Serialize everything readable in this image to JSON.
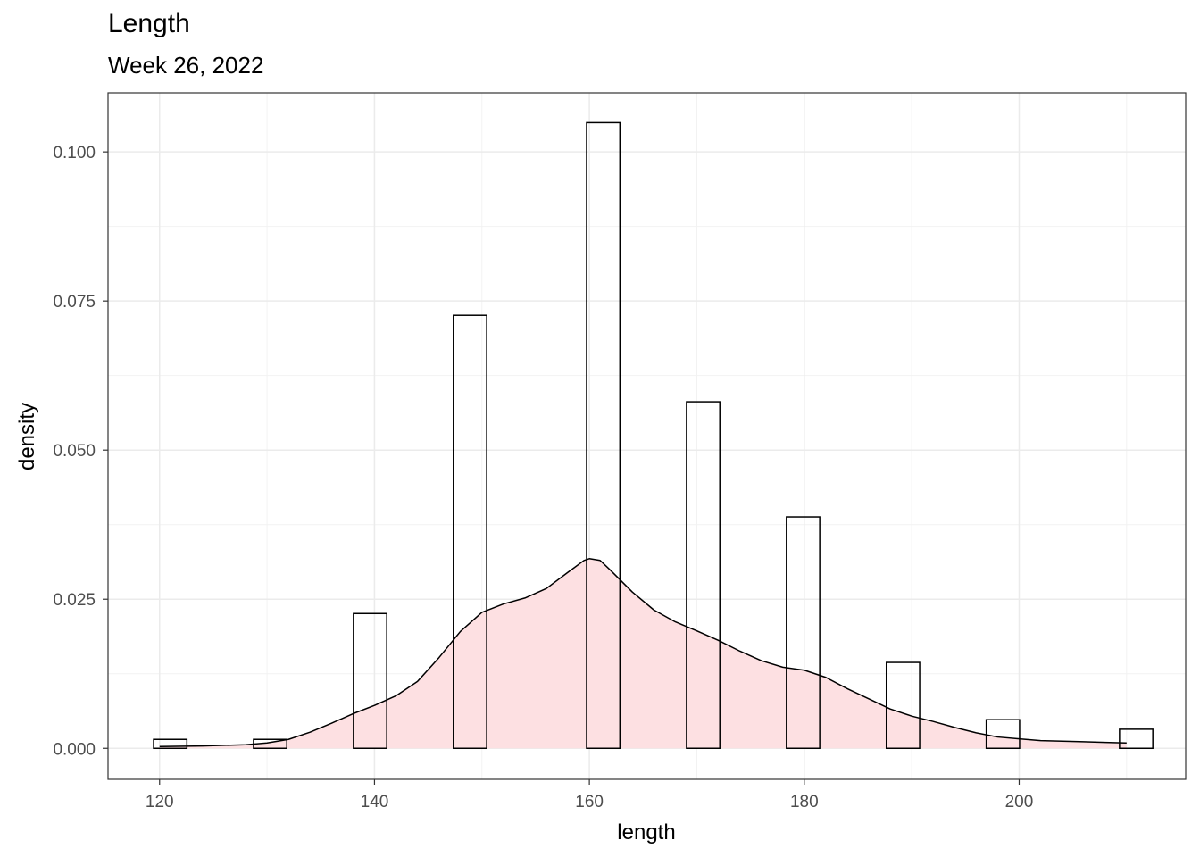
{
  "chart_data": {
    "type": "bar",
    "title": "Length",
    "subtitle": "Week 26, 2022",
    "xlabel": "length",
    "ylabel": "density",
    "xlim": [
      115.2,
      215.5
    ],
    "ylim": [
      -0.0052,
      0.1099
    ],
    "x_ticks": [
      "120",
      "140",
      "160",
      "180",
      "200"
    ],
    "x_tick_values": [
      120,
      140,
      160,
      180,
      200
    ],
    "y_ticks": [
      "0.000",
      "0.025",
      "0.050",
      "0.075",
      "0.100"
    ],
    "y_tick_values": [
      0,
      0.025,
      0.05,
      0.075,
      0.1
    ],
    "grid": true,
    "histogram": {
      "bin_width": 3.1,
      "bin_centers": [
        120.99,
        130.29,
        139.59,
        148.89,
        161.29,
        170.59,
        179.89,
        189.19,
        198.49,
        210.89
      ],
      "density": [
        0.0015,
        0.0015,
        0.0226,
        0.0726,
        0.1049,
        0.0581,
        0.0388,
        0.0144,
        0.0048,
        0.0032
      ],
      "fill": "#ffffff",
      "stroke": "#000000"
    },
    "density_curve": {
      "x": [
        120,
        124,
        128,
        130,
        132,
        134,
        136,
        138,
        140,
        142,
        144,
        146,
        148,
        150,
        152,
        154,
        156,
        158,
        159.5,
        160,
        161,
        162,
        164,
        166,
        168,
        170,
        172,
        174,
        176,
        178,
        180,
        182,
        184,
        186,
        188,
        190,
        192,
        194,
        196,
        198,
        200,
        202,
        204,
        206,
        208,
        210
      ],
      "y": [
        0.0003,
        0.0004,
        0.0006,
        0.0009,
        0.0015,
        0.0027,
        0.0042,
        0.0058,
        0.0072,
        0.0088,
        0.0112,
        0.0152,
        0.0196,
        0.0228,
        0.0242,
        0.0252,
        0.0268,
        0.0295,
        0.0315,
        0.0318,
        0.0315,
        0.0298,
        0.0262,
        0.0232,
        0.0212,
        0.0197,
        0.0181,
        0.0163,
        0.0147,
        0.0136,
        0.0131,
        0.0119,
        0.01,
        0.0083,
        0.0066,
        0.0054,
        0.0045,
        0.0035,
        0.0026,
        0.0019,
        0.0016,
        0.0013,
        0.0012,
        0.0011,
        0.001,
        0.0009
      ],
      "fill": "#fde0e2",
      "stroke": "#000000"
    }
  }
}
